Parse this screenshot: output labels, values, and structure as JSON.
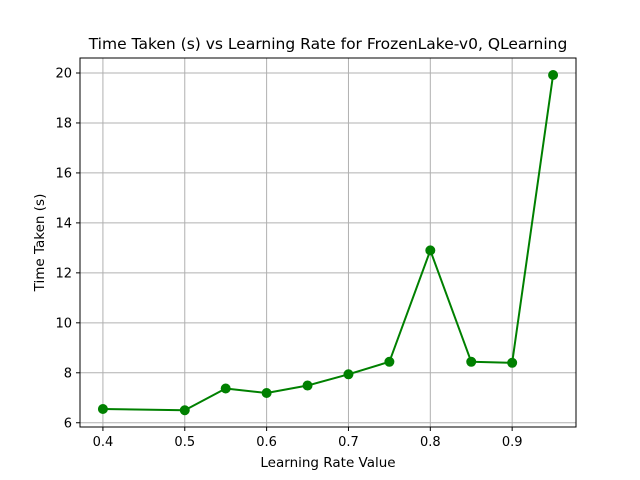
{
  "chart_data": {
    "type": "line",
    "title": "Time Taken (s) vs Learning Rate for FrozenLake-v0, QLearning",
    "xlabel": "Learning Rate Value",
    "ylabel": "Time Taken (s)",
    "x": [
      0.4,
      0.5,
      0.55,
      0.6,
      0.65,
      0.7,
      0.75,
      0.8,
      0.85,
      0.9,
      0.95
    ],
    "series": [
      {
        "values": [
          6.55,
          6.5,
          7.37,
          7.19,
          7.49,
          7.94,
          8.44,
          12.9,
          8.44,
          8.4,
          19.92
        ],
        "color": "#008000",
        "marker": "circle"
      }
    ],
    "xlim": [
      0.372,
      0.978
    ],
    "ylim": [
      5.83,
      20.6
    ],
    "xticks": [
      0.4,
      0.5,
      0.6,
      0.7,
      0.8,
      0.9
    ],
    "xtick_labels": [
      "0.4",
      "0.5",
      "0.6",
      "0.7",
      "0.8",
      "0.9"
    ],
    "yticks": [
      6,
      8,
      10,
      12,
      14,
      16,
      18,
      20
    ],
    "ytick_labels": [
      "6",
      "8",
      "10",
      "12",
      "14",
      "16",
      "18",
      "20"
    ],
    "grid": true,
    "grid_color": "#b0b0b0",
    "legend": false
  }
}
